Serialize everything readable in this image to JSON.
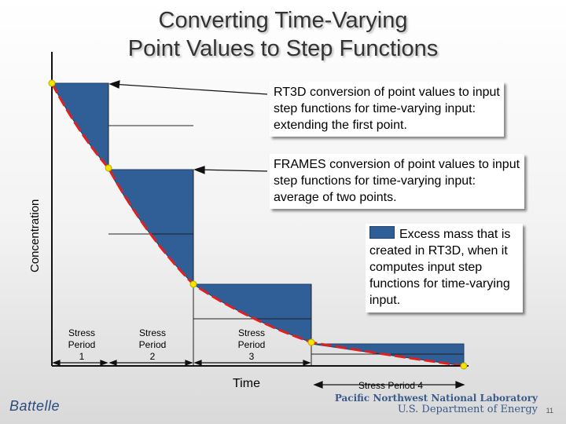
{
  "title": {
    "line1": "Converting Time-Varying",
    "line2": "Point Values to Step Functions"
  },
  "axes": {
    "ylabel": "Concentration",
    "xlabel": "Time"
  },
  "callouts": {
    "rt3d": "RT3D conversion of point values to input step functions for time-varying input:  extending the first point.",
    "frames": "FRAMES conversion of point values to input step functions for time-varying input:  average of two points.",
    "excess": "Excess mass that is created in RT3D, when it computes input step functions for time-varying input."
  },
  "periods": [
    {
      "line1": "Stress",
      "line2": "Period",
      "line3": "1"
    },
    {
      "line1": "Stress",
      "line2": "Period",
      "line3": "2"
    },
    {
      "line1": "Stress",
      "line2": "Period",
      "line3": "3"
    }
  ],
  "period4_label": "Stress Period 4",
  "footer": {
    "battelle": "Battelle",
    "lab_line1": "Pacific Northwest National Laboratory",
    "lab_line2": "U.S. Department of Energy",
    "page": "11"
  },
  "colors": {
    "fill": "#2f5f96",
    "curve": "#e02020",
    "points": "#f5e300"
  }
}
